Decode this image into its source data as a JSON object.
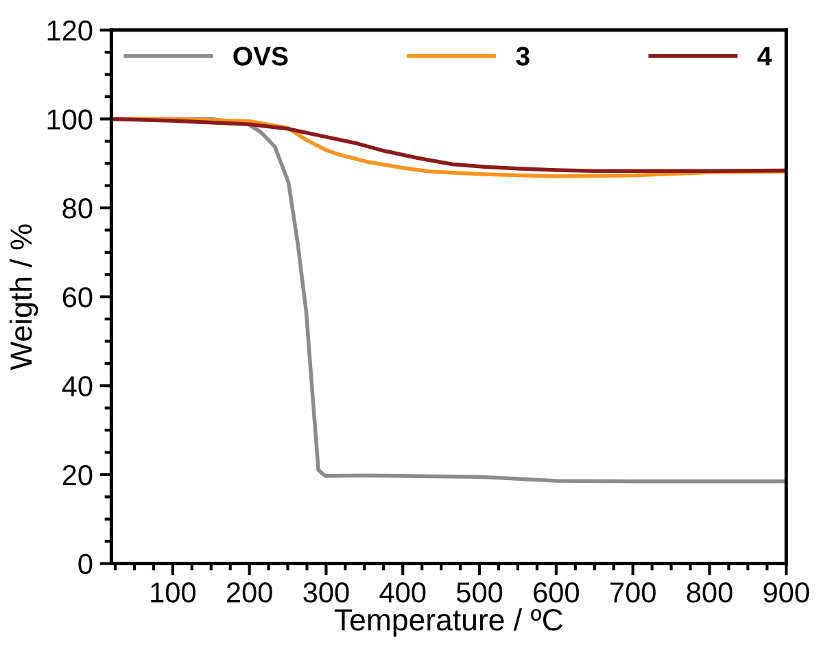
{
  "chart_data": {
    "type": "line",
    "xlabel": "Temperature / ºC",
    "ylabel": "Weigth / %",
    "xlim": [
      20,
      900
    ],
    "xticks": [
      100,
      200,
      300,
      400,
      500,
      600,
      700,
      800,
      900
    ],
    "ylim": [
      0,
      120
    ],
    "yticks": [
      0,
      20,
      40,
      60,
      80,
      100,
      120
    ],
    "grid": false,
    "legend": "top",
    "marker": "none",
    "line_style": "solid",
    "series": [
      {
        "name": "OVS",
        "color": "#8c8c8c",
        "x": [
          20,
          100,
          150,
          197,
          215,
          233,
          251,
          263,
          274,
          283,
          290,
          299,
          350,
          400,
          500,
          600,
          700,
          800,
          900
        ],
        "values": [
          100,
          100,
          100,
          99,
          97,
          93.8,
          85.7,
          72,
          56.7,
          36.4,
          21,
          19.7,
          19.8,
          19.7,
          19.5,
          18.6,
          18.5,
          18.5,
          18.5
        ]
      },
      {
        "name": "3",
        "color": "#f7941d",
        "x": [
          20,
          100,
          200,
          250,
          274,
          300,
          317,
          353,
          400,
          435,
          500,
          555,
          600,
          700,
          800,
          900
        ],
        "values": [
          100,
          100,
          99.5,
          98,
          95.3,
          93,
          92,
          90.4,
          89,
          88.2,
          87.6,
          87.3,
          87.1,
          87.3,
          88,
          88.2
        ]
      },
      {
        "name": "4",
        "color": "#8b1a1a",
        "x": [
          20,
          100,
          200,
          250,
          299,
          340,
          376,
          420,
          465,
          510,
          555,
          600,
          650,
          700,
          800,
          900
        ],
        "values": [
          100,
          99.6,
          98.8,
          97.8,
          96,
          94.5,
          92.8,
          91.2,
          89.8,
          89.2,
          88.8,
          88.5,
          88.3,
          88.3,
          88.3,
          88.4
        ]
      }
    ]
  }
}
